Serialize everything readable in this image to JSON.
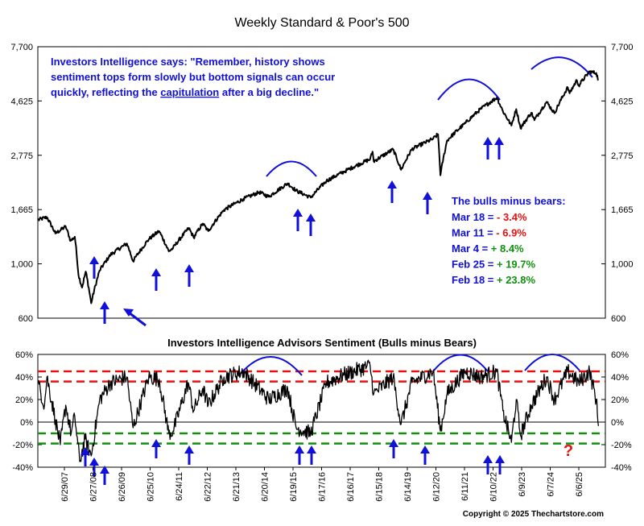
{
  "title": "Weekly Standard & Poor's 500",
  "copyright": "Copyright © 2025 Thechartstore.com",
  "colors": {
    "price_line": "#000000",
    "sentiment_line": "#000000",
    "arrow": "#1010d8",
    "arc": "#1010d8",
    "quote_text": "#1010d8",
    "red_dashed": "#e81010",
    "green_dashed": "#109010",
    "negative_value": "#e81010",
    "positive_value": "#109010",
    "panel_border": "#000000",
    "question_mark": "#e81010"
  },
  "quote": {
    "line1": "Investors Intelligence says: \"Remember, history shows",
    "line2": "sentiment tops form slowly but bottom signals can occur",
    "line3_before": "quickly, reflecting the ",
    "line3_underlined": "capitulation",
    "line3_after": " after a big decline.\""
  },
  "readings": {
    "heading": "The bulls minus bears:",
    "rows": [
      {
        "date": "Mar 18 = ",
        "value": "- 3.4%",
        "sign": "negative"
      },
      {
        "date": "Mar 11 = ",
        "value": "- 6.9%",
        "sign": "negative"
      },
      {
        "date": "Mar 4 = ",
        "value": "+ 8.4%",
        "sign": "positive"
      },
      {
        "date": "Feb 25 = ",
        "value": "+ 19.7%",
        "sign": "positive"
      },
      {
        "date": "Feb 18 = ",
        "value": "+ 23.8%",
        "sign": "positive"
      }
    ]
  },
  "question_mark": "?",
  "chart_data": [
    {
      "type": "line",
      "title": "Weekly Standard & Poor's 500",
      "y_scale": "log",
      "ylim": [
        600,
        7700
      ],
      "yticks": [
        600,
        1000,
        1665,
        2775,
        4625,
        7700
      ],
      "ytick_labels": [
        "600",
        "1,000",
        "1,665",
        "2,775",
        "4,625",
        "7,700"
      ],
      "xlim": [
        "2007-06-29",
        "2025-06-06"
      ],
      "x_tick_labels": [
        "6/29/07",
        "6/27/08",
        "6/26/09",
        "6/25/10",
        "6/24/11",
        "6/22/12",
        "6/21/13",
        "6/20/14",
        "6/19/15",
        "6/17/16",
        "6/16/17",
        "6/15/18",
        "6/14/19",
        "6/12/20",
        "6/11/21",
        "6/10/22",
        "6/9/23",
        "6/7/24",
        "6/6/25"
      ],
      "series": [
        {
          "points": [
            [
              "2007-06-29",
              1510
            ],
            [
              "2007-10-12",
              1550
            ],
            [
              "2008-01-18",
              1330
            ],
            [
              "2008-05-16",
              1420
            ],
            [
              "2008-07-11",
              1240
            ],
            [
              "2008-08-29",
              1290
            ],
            [
              "2008-10-10",
              900
            ],
            [
              "2008-11-21",
              800
            ],
            [
              "2009-01-02",
              930
            ],
            [
              "2009-03-06",
              690
            ],
            [
              "2009-06-12",
              940
            ],
            [
              "2009-10-16",
              1090
            ],
            [
              "2010-04-23",
              1210
            ],
            [
              "2010-07-02",
              1025
            ],
            [
              "2010-12-31",
              1260
            ],
            [
              "2011-04-29",
              1360
            ],
            [
              "2011-08-19",
              1125
            ],
            [
              "2011-10-07",
              1160
            ],
            [
              "2012-04-06",
              1400
            ],
            [
              "2012-06-01",
              1280
            ],
            [
              "2012-09-14",
              1460
            ],
            [
              "2012-11-16",
              1360
            ],
            [
              "2013-05-17",
              1660
            ],
            [
              "2013-12-27",
              1840
            ],
            [
              "2014-06-27",
              1960
            ],
            [
              "2014-10-17",
              1880
            ],
            [
              "2015-05-22",
              2130
            ],
            [
              "2015-08-28",
              1990
            ],
            [
              "2016-02-12",
              1865
            ],
            [
              "2016-08-12",
              2180
            ],
            [
              "2017-03-03",
              2380
            ],
            [
              "2017-12-29",
              2675
            ],
            [
              "2018-01-26",
              2870
            ],
            [
              "2018-02-09",
              2620
            ],
            [
              "2018-09-21",
              2930
            ],
            [
              "2018-12-21",
              2420
            ],
            [
              "2019-04-26",
              2940
            ],
            [
              "2019-12-27",
              3240
            ],
            [
              "2020-02-21",
              3380
            ],
            [
              "2020-03-20",
              2300
            ],
            [
              "2020-06-05",
              3190
            ],
            [
              "2020-12-31",
              3750
            ],
            [
              "2021-06-25",
              4280
            ],
            [
              "2021-12-31",
              4770
            ],
            [
              "2022-03-11",
              4200
            ],
            [
              "2022-06-17",
              3670
            ],
            [
              "2022-08-12",
              4280
            ],
            [
              "2022-09-30",
              3580
            ],
            [
              "2023-02-03",
              4140
            ],
            [
              "2023-03-10",
              3860
            ],
            [
              "2023-07-28",
              4580
            ],
            [
              "2023-10-27",
              4120
            ],
            [
              "2024-03-29",
              5250
            ],
            [
              "2024-04-19",
              4970
            ],
            [
              "2024-07-12",
              5615
            ],
            [
              "2024-08-02",
              5345
            ],
            [
              "2024-12-06",
              6090
            ],
            [
              "2025-02-21",
              6015
            ],
            [
              "2025-03-18",
              5620
            ]
          ]
        }
      ]
    },
    {
      "type": "line",
      "title": "Investors Intelligence Advisors Sentiment (Bulls minus Bears)",
      "ylim": [
        -40,
        60
      ],
      "yticks": [
        -40,
        -20,
        0,
        20,
        40,
        60
      ],
      "ytick_labels": [
        "-40%",
        "-20%",
        "0%",
        "20%",
        "40%",
        "60%"
      ],
      "reference_lines": {
        "red_dashed": [
          45,
          36
        ],
        "green_dashed": [
          -10,
          -19
        ],
        "solid": [
          0
        ]
      },
      "series": [
        {
          "points": [
            [
              "2007-06-29",
              35
            ],
            [
              "2007-09-14",
              15
            ],
            [
              "2007-10-12",
              40
            ],
            [
              "2008-01-18",
              2
            ],
            [
              "2008-03-14",
              -20
            ],
            [
              "2008-05-16",
              15
            ],
            [
              "2008-07-18",
              -10
            ],
            [
              "2008-08-29",
              5
            ],
            [
              "2008-10-24",
              -35
            ],
            [
              "2008-12-26",
              -15
            ],
            [
              "2009-03-06",
              -30
            ],
            [
              "2009-06-12",
              20
            ],
            [
              "2009-10-16",
              35
            ],
            [
              "2010-04-23",
              40
            ],
            [
              "2010-07-02",
              -5
            ],
            [
              "2010-12-31",
              40
            ],
            [
              "2011-04-29",
              38
            ],
            [
              "2011-08-19",
              -10
            ],
            [
              "2011-10-07",
              -8
            ],
            [
              "2012-03-30",
              35
            ],
            [
              "2012-06-01",
              10
            ],
            [
              "2012-09-14",
              30
            ],
            [
              "2012-11-16",
              15
            ],
            [
              "2013-05-17",
              40
            ],
            [
              "2013-12-27",
              45
            ],
            [
              "2014-10-17",
              20
            ],
            [
              "2015-05-22",
              30
            ],
            [
              "2015-08-28",
              -5
            ],
            [
              "2016-02-12",
              -10
            ],
            [
              "2016-08-12",
              35
            ],
            [
              "2017-03-03",
              42
            ],
            [
              "2017-12-29",
              50
            ],
            [
              "2018-02-09",
              25
            ],
            [
              "2018-09-21",
              40
            ],
            [
              "2018-12-21",
              -2
            ],
            [
              "2019-04-26",
              35
            ],
            [
              "2019-12-27",
              45
            ],
            [
              "2020-03-20",
              -8
            ],
            [
              "2020-06-05",
              25
            ],
            [
              "2020-12-31",
              45
            ],
            [
              "2021-06-25",
              40
            ],
            [
              "2021-12-31",
              45
            ],
            [
              "2022-03-11",
              10
            ],
            [
              "2022-06-17",
              -18
            ],
            [
              "2022-08-12",
              20
            ],
            [
              "2022-09-30",
              -12
            ],
            [
              "2023-02-03",
              15
            ],
            [
              "2023-07-28",
              40
            ],
            [
              "2023-10-27",
              20
            ],
            [
              "2024-03-29",
              45
            ],
            [
              "2024-08-02",
              35
            ],
            [
              "2024-12-06",
              45
            ],
            [
              "2025-02-21",
              20
            ],
            [
              "2025-03-18",
              -3.4
            ]
          ]
        }
      ]
    }
  ]
}
